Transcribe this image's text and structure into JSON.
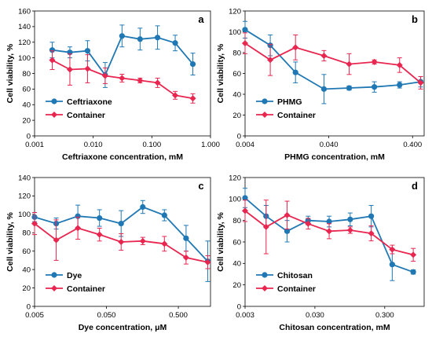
{
  "colors": {
    "blue": "#1f78b4",
    "red": "#e8264f",
    "axis": "#000000",
    "error": "#1f78b4"
  },
  "chart_data": [
    {
      "type": "line",
      "panel": "a",
      "xscale": "log",
      "xlim": [
        0.001,
        1.0
      ],
      "xticks": [
        0.001,
        0.01,
        0.1,
        1.0
      ],
      "xtick_labels": [
        "0.001",
        "0.010",
        "0.100",
        "1.000"
      ],
      "ylim": [
        0,
        160
      ],
      "yticks": [
        0,
        20,
        40,
        60,
        80,
        100,
        120,
        140,
        160
      ],
      "xlabel": "Ceftriaxone concentration, mM",
      "ylabel": "Cell viability, %",
      "legend_position": "bottom-left",
      "series": [
        {
          "name": "Ceftriaxone",
          "color": "#1f78b4",
          "marker": "circle",
          "x": [
            0.002,
            0.004,
            0.008,
            0.016,
            0.031,
            0.063,
            0.125,
            0.25,
            0.5
          ],
          "y": [
            110,
            107,
            109,
            78,
            128,
            124,
            126,
            119,
            92
          ],
          "err": [
            10,
            7,
            13,
            16,
            14,
            14,
            15,
            10,
            14
          ]
        },
        {
          "name": "Container",
          "color": "#e8264f",
          "marker": "diamond",
          "x": [
            0.002,
            0.004,
            0.008,
            0.016,
            0.031,
            0.063,
            0.125,
            0.25,
            0.5
          ],
          "y": [
            97,
            85,
            86,
            77,
            74,
            71,
            68,
            52,
            48
          ],
          "err": [
            12,
            20,
            18,
            10,
            5,
            3,
            6,
            5,
            6
          ]
        }
      ]
    },
    {
      "type": "line",
      "panel": "b",
      "xscale": "log",
      "xlim": [
        0.004,
        0.55
      ],
      "xticks": [
        0.004,
        0.04,
        0.4
      ],
      "xtick_labels": [
        "0.004",
        "0.040",
        "0.400"
      ],
      "ylim": [
        0,
        120
      ],
      "yticks": [
        0,
        20,
        40,
        60,
        80,
        100,
        120
      ],
      "xlabel": "PHMG concentration, mM",
      "ylabel": "Cell viability, %",
      "legend_position": "bottom-left",
      "series": [
        {
          "name": "PHMG",
          "color": "#1f78b4",
          "marker": "circle",
          "x": [
            0.004,
            0.008,
            0.016,
            0.035,
            0.07,
            0.14,
            0.28,
            0.5
          ],
          "y": [
            102,
            87,
            61,
            45,
            46,
            47,
            49,
            52
          ],
          "err": [
            8,
            10,
            10,
            14,
            2,
            5,
            3,
            5
          ]
        },
        {
          "name": "Container",
          "color": "#e8264f",
          "marker": "diamond",
          "x": [
            0.004,
            0.008,
            0.016,
            0.035,
            0.07,
            0.14,
            0.28,
            0.5
          ],
          "y": [
            89,
            73,
            85,
            77,
            69,
            71,
            68,
            51
          ],
          "err": [
            10,
            15,
            12,
            5,
            10,
            2,
            7,
            6
          ]
        }
      ]
    },
    {
      "type": "line",
      "panel": "c",
      "xscale": "log",
      "xlim": [
        0.005,
        1.4
      ],
      "xticks": [
        0.005,
        0.05,
        0.5
      ],
      "xtick_labels": [
        "0.005",
        "0.050",
        "0.500"
      ],
      "ylim": [
        0,
        140
      ],
      "yticks": [
        0,
        20,
        40,
        60,
        80,
        100,
        120,
        140
      ],
      "xlabel": "Dye concentration, μM",
      "ylabel": "Cell viability, %",
      "legend_position": "bottom-left",
      "series": [
        {
          "name": "Dye",
          "color": "#1f78b4",
          "marker": "circle",
          "x": [
            0.005,
            0.01,
            0.02,
            0.04,
            0.08,
            0.16,
            0.32,
            0.64,
            1.28
          ],
          "y": [
            97,
            90,
            98,
            96,
            90,
            108,
            99,
            74,
            49
          ],
          "err": [
            5,
            6,
            12,
            9,
            14,
            7,
            6,
            14,
            22
          ]
        },
        {
          "name": "Container",
          "color": "#e8264f",
          "marker": "diamond",
          "x": [
            0.005,
            0.01,
            0.02,
            0.04,
            0.08,
            0.16,
            0.32,
            0.64,
            1.28
          ],
          "y": [
            90,
            72,
            85,
            78,
            70,
            71,
            68,
            53,
            48
          ],
          "err": [
            12,
            22,
            12,
            7,
            9,
            4,
            8,
            7,
            7
          ]
        }
      ]
    },
    {
      "type": "line",
      "panel": "d",
      "xscale": "log",
      "xlim": [
        0.003,
        1.1
      ],
      "xticks": [
        0.003,
        0.03,
        0.3
      ],
      "xtick_labels": [
        "0.003",
        "0.030",
        "0.300"
      ],
      "ylim": [
        0,
        120
      ],
      "yticks": [
        0,
        20,
        40,
        60,
        80,
        100,
        120
      ],
      "xlabel": "Chitosan concentration, mM",
      "ylabel": "Cell viability, %",
      "legend_position": "bottom-left",
      "series": [
        {
          "name": "Chitosan",
          "color": "#1f78b4",
          "marker": "circle",
          "x": [
            0.003,
            0.006,
            0.012,
            0.024,
            0.048,
            0.096,
            0.192,
            0.384,
            0.768
          ],
          "y": [
            101,
            84,
            70,
            80,
            79,
            81,
            84,
            39,
            32
          ],
          "err": [
            9,
            10,
            10,
            4,
            5,
            6,
            10,
            15,
            2
          ]
        },
        {
          "name": "Container",
          "color": "#e8264f",
          "marker": "diamond",
          "x": [
            0.003,
            0.006,
            0.012,
            0.024,
            0.048,
            0.096,
            0.192,
            0.384,
            0.768
          ],
          "y": [
            89,
            74,
            85,
            77,
            70,
            71,
            68,
            53,
            48
          ],
          "err": [
            10,
            25,
            13,
            5,
            7,
            3,
            7,
            4,
            6
          ]
        }
      ]
    }
  ]
}
